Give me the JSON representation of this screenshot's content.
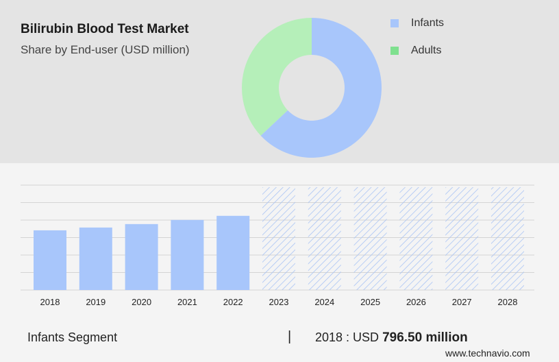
{
  "title": "Bilirubin Blood Test Market",
  "subtitle": "Share by End-user (USD million)",
  "colors": {
    "infants": "#a8c6fb",
    "adults": "#b5efb9",
    "adults_legend": "#7fe08f",
    "forecast_hatch": "#aac4f4"
  },
  "chart_data": [
    {
      "type": "pie",
      "title": "",
      "legend_position": "top-right",
      "donut": true,
      "series": [
        {
          "name": "Infants",
          "value": 63
        },
        {
          "name": "Adults",
          "value": 37
        }
      ]
    },
    {
      "type": "bar",
      "categories": [
        "2018",
        "2019",
        "2020",
        "2021",
        "2022",
        "2023",
        "2024",
        "2025",
        "2026",
        "2027",
        "2028"
      ],
      "values": [
        796.5,
        834,
        880,
        935,
        990,
        null,
        null,
        null,
        null,
        null,
        null
      ],
      "forecast_categories": [
        "2023",
        "2024",
        "2025",
        "2026",
        "2027",
        "2028"
      ],
      "xlabel": "",
      "ylabel": "",
      "ylim": [
        0,
        1400
      ],
      "grid": true
    }
  ],
  "footer": {
    "segment_label": "Infants Segment",
    "separator": "|",
    "year_prefix": "2018 : USD",
    "year_value": "796.50 million"
  },
  "brand": "www.technavio.com"
}
